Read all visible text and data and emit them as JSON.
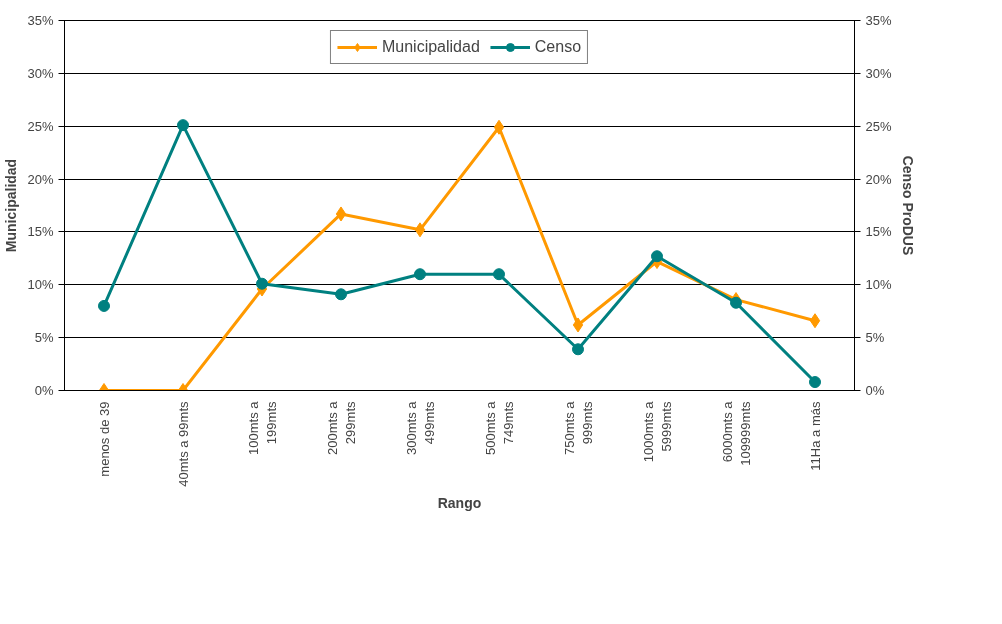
{
  "chart_data": {
    "type": "line",
    "xlabel": "Rango",
    "ylabel": "Municipalidad",
    "y2label": "Censo ProDUS",
    "categories": [
      "menos de 39",
      "40mts a 99mts",
      "100mts a\n199mts",
      "200mts a\n299mts",
      "300mts a\n499mts",
      "500mts a\n749mts",
      "750mts a\n999mts",
      "1000mts a\n5999mts",
      "6000mts a\n109999mts",
      "11Ha a más"
    ],
    "series": [
      {
        "name": "Municipalidad",
        "color": "#ff9900",
        "marker": "diamond",
        "values": [
          0,
          0,
          9.6,
          16.7,
          15.2,
          24.9,
          6.2,
          12.2,
          8.6,
          6.6
        ]
      },
      {
        "name": "Censo",
        "color": "#008080",
        "marker": "circle",
        "values": [
          8.0,
          25.1,
          10.1,
          9.1,
          11.0,
          11.0,
          3.9,
          12.7,
          8.3,
          0.8
        ]
      }
    ],
    "ylim": [
      0,
      35
    ],
    "yticks": [
      {
        "value": 0,
        "label": "0%"
      },
      {
        "value": 5,
        "label": "5%"
      },
      {
        "value": 10,
        "label": "10%"
      },
      {
        "value": 15,
        "label": "15%"
      },
      {
        "value": 20,
        "label": "20%"
      },
      {
        "value": 25,
        "label": "25%"
      },
      {
        "value": 30,
        "label": "30%"
      },
      {
        "value": 35,
        "label": "35%"
      }
    ],
    "y2lim": [
      0,
      35
    ],
    "y2ticks": [
      {
        "value": 0,
        "label": "0%"
      },
      {
        "value": 5,
        "label": "5%"
      },
      {
        "value": 10,
        "label": "10%"
      },
      {
        "value": 15,
        "label": "15%"
      },
      {
        "value": 20,
        "label": "20%"
      },
      {
        "value": 25,
        "label": "25%"
      },
      {
        "value": 30,
        "label": "30%"
      },
      {
        "value": 35,
        "label": "35%"
      }
    ],
    "grid": "y",
    "legend": "top",
    "line_style": "solid"
  }
}
